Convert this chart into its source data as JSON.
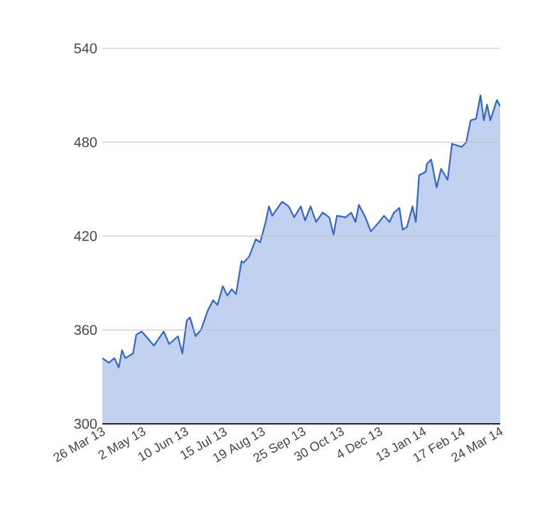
{
  "chart_data": {
    "type": "area",
    "color": "#3366cc",
    "x": [
      "2013-03-26",
      "2013-04-01",
      "2013-04-06",
      "2013-04-10",
      "2013-04-13",
      "2013-04-16",
      "2013-04-23",
      "2013-04-26",
      "2013-05-01",
      "2013-05-06",
      "2013-05-12",
      "2013-05-21",
      "2013-05-26",
      "2013-06-03",
      "2013-06-07",
      "2013-06-11",
      "2013-06-14",
      "2013-06-19",
      "2013-06-24",
      "2013-06-30",
      "2013-07-05",
      "2013-07-09",
      "2013-07-14",
      "2013-07-18",
      "2013-07-22",
      "2013-07-26",
      "2013-07-31",
      "2013-08-02",
      "2013-08-07",
      "2013-08-13",
      "2013-08-17",
      "2013-08-22",
      "2013-08-25",
      "2013-08-28",
      "2013-09-06",
      "2013-09-12",
      "2013-09-17",
      "2013-09-23",
      "2013-09-27",
      "2013-10-02",
      "2013-10-07",
      "2013-10-13",
      "2013-10-19",
      "2013-10-23",
      "2013-10-26",
      "2013-11-03",
      "2013-11-08",
      "2013-11-12",
      "2013-11-15",
      "2013-11-21",
      "2013-11-26",
      "2013-12-01",
      "2013-12-08",
      "2013-12-13",
      "2013-12-17",
      "2013-12-22",
      "2013-12-25",
      "2013-12-29",
      "2014-01-03",
      "2014-01-06",
      "2014-01-09",
      "2014-01-15",
      "2014-01-16",
      "2014-01-20",
      "2014-01-25",
      "2014-01-29",
      "2014-02-04",
      "2014-02-08",
      "2014-02-17",
      "2014-02-21",
      "2014-02-25",
      "2014-03-02",
      "2014-03-06",
      "2014-03-09",
      "2014-03-12",
      "2014-03-15",
      "2014-03-21",
      "2014-03-24"
    ],
    "values": [
      342,
      339,
      342,
      336,
      347,
      342,
      345,
      357,
      359,
      355,
      350,
      359,
      351,
      356,
      345,
      366,
      368,
      356,
      360,
      372,
      379,
      376,
      388,
      382,
      386,
      383,
      404,
      403,
      407,
      418,
      416,
      429,
      439,
      433,
      442,
      439,
      432,
      439,
      430,
      439,
      429,
      435,
      432,
      421,
      433,
      432,
      435,
      429,
      440,
      432,
      423,
      427,
      433,
      429,
      435,
      438,
      424,
      426,
      439,
      429,
      459,
      461,
      466,
      469,
      451,
      463,
      456,
      479,
      477,
      480,
      494,
      495,
      510,
      494,
      504,
      494,
      507,
      503
    ],
    "xlim": [
      "2013-03-26",
      "2014-03-24"
    ],
    "xticks": [
      {
        "value": "2013-03-26",
        "label": "26 Mar 13"
      },
      {
        "value": "2013-05-02",
        "label": "2 May 13"
      },
      {
        "value": "2013-06-10",
        "label": "10 Jun 13"
      },
      {
        "value": "2013-07-15",
        "label": "15 Jul 13"
      },
      {
        "value": "2013-08-19",
        "label": "19 Aug 13"
      },
      {
        "value": "2013-09-25",
        "label": "25 Sep 13"
      },
      {
        "value": "2013-10-30",
        "label": "30 Oct 13"
      },
      {
        "value": "2013-12-04",
        "label": "4 Dec 13"
      },
      {
        "value": "2014-01-13",
        "label": "13 Jan 14"
      },
      {
        "value": "2014-02-17",
        "label": "17 Feb 14"
      },
      {
        "value": "2014-03-24",
        "label": "24 Mar 14"
      }
    ],
    "ylim": [
      300,
      540
    ],
    "yticks": [
      300,
      360,
      420,
      480,
      540
    ],
    "grid": "y"
  }
}
